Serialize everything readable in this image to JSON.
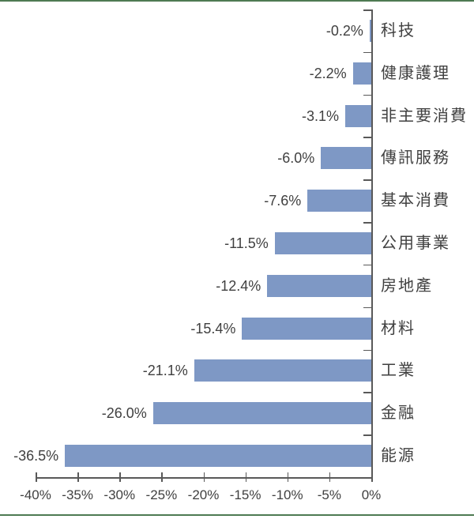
{
  "chart_data": {
    "type": "bar",
    "orientation": "horizontal",
    "title": "",
    "categories": [
      "科技",
      "健康護理",
      "非主要消費",
      "傳訊服務",
      "基本消費",
      "公用事業",
      "房地產",
      "材料",
      "工業",
      "金融",
      "能源"
    ],
    "values": [
      -0.2,
      -2.2,
      -3.1,
      -6.0,
      -7.6,
      -11.5,
      -12.4,
      -15.4,
      -21.1,
      -26.0,
      -36.5
    ],
    "data_labels": [
      "-0.2%",
      "-2.2%",
      "-3.1%",
      "-6.0%",
      "-7.6%",
      "-11.5%",
      "-12.4%",
      "-15.4%",
      "-21.1%",
      "-26.0%",
      "-36.5%"
    ],
    "xlim": [
      -40,
      0
    ],
    "x_tick_labels": [
      "-40%",
      "-35%",
      "-30%",
      "-25%",
      "-20%",
      "-15%",
      "-10%",
      "-5%",
      "0%"
    ],
    "xlabel": "",
    "ylabel": "",
    "grid": false,
    "legend_position": "none"
  },
  "colors": {
    "bar": "#7e98c5",
    "axis": "#595959",
    "text": "#404040",
    "rule": "#4e7a52"
  }
}
